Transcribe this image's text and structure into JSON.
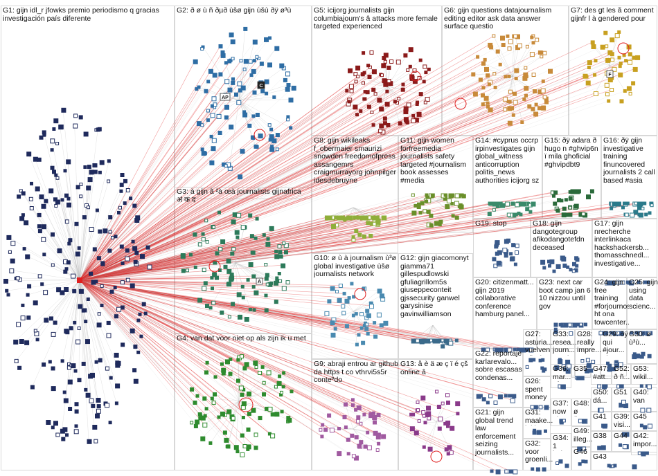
{
  "groups": [
    {
      "id": "G1",
      "label": "G1: gijn idl_r jfowks premio periodismo q gracias investigación país diferente"
    },
    {
      "id": "G2",
      "label": "G2: ð ø ù ñ ðµð ùšø gijn ùšù ðÿ ø³ù"
    },
    {
      "id": "G5",
      "label": "G5: icijorg journalists gijn columbiajourn's â attacks more female targeted experienced"
    },
    {
      "id": "G6",
      "label": "G6: gijn questions datajournalism editing editor ask data answer surface questio"
    },
    {
      "id": "G7",
      "label": "G7: des gt les ã comment gijnfr l à gendered pour"
    },
    {
      "id": "G8",
      "label": "G8: gijn wikileaks f_obermaier smaurizi snowden freedomofpress assangemrs craigmurrayorg johnpilger idesdebruyne"
    },
    {
      "id": "G11",
      "label": "G11: gijn women forfreemedia journalists safety targeted #journalism book assesses #media"
    },
    {
      "id": "G14",
      "label": "G14: #cyprus occrp irpinvestigates gijn global_witness anticorruption politis_news authorities icijorg sz"
    },
    {
      "id": "G15",
      "label": "G15: ðÿ adara ð hugo n #ghvip6n ï mila ghoficial #ghvipdbt9"
    },
    {
      "id": "G16",
      "label": "G16: ðÿ gijn investigative training finuncovered journalists 2 call based #asia"
    },
    {
      "id": "G3",
      "label": "G3: à gijn ã ²à œà journalists gijnafrica ॳ क द"
    },
    {
      "id": "G19",
      "label": "G19: stop"
    },
    {
      "id": "G18",
      "label": "G18: gijn dangotegroup afikodangotefdn deceased"
    },
    {
      "id": "G17",
      "label": "G17: gijn nrecherche interlinkaca hackshackersb... thomasschnedl... investigative..."
    },
    {
      "id": "G10",
      "label": "G10: ø ù à journalism ù³ø global investigative ùšø journalists network"
    },
    {
      "id": "G12",
      "label": "G12: gijn giacomonyt giamma71 gillespudlowski gfuliagrillom5s giuseppeconteit gjssecurity ganwel garysinise gavinwilliamson"
    },
    {
      "id": "G20",
      "label": "G20: citizenmatt... gijn 2019 collaborative conference hamburg panel..."
    },
    {
      "id": "G23",
      "label": "G23: next car boot camp jan 6 10 nizzou until gov"
    },
    {
      "id": "G24",
      "label": "G24: gijn free training #forjournos ht ona towcenter..."
    },
    {
      "id": "G25",
      "label": "G25: gijn using data scienc..."
    },
    {
      "id": "G4",
      "label": "G4: van dat voor niet op als zijn ik u met"
    },
    {
      "id": "G27",
      "label": "G27: asturia... vuelven #ficxin..."
    },
    {
      "id": "G33",
      "label": "G33: resea... journ... need..."
    },
    {
      "id": "G28",
      "label": "G28: really impre... resea..."
    },
    {
      "id": "G29",
      "label": "G29: ðÿ qui #jour... vient..."
    },
    {
      "id": "G30",
      "label": "G30: ø ù³ù..."
    },
    {
      "id": "G22",
      "label": "G22: reportaje karlarevalo... sobre escasas condenas..."
    },
    {
      "id": "G26",
      "label": "G26: spent money report..."
    },
    {
      "id": "G36",
      "label": "G36: mar... efot..."
    },
    {
      "id": "G35",
      "label": "G35"
    },
    {
      "id": "G47",
      "label": "G47: #att..."
    },
    {
      "id": "G52",
      "label": "G52: ð ñ..."
    },
    {
      "id": "G53",
      "label": "G53: wikil..."
    },
    {
      "id": "G9",
      "label": "G9: abraji entrou ar github da https t co vthrvi5s5r conteºdo"
    },
    {
      "id": "G13",
      "label": "G13: å è ä æ ç ï é çš online â"
    },
    {
      "id": "G37",
      "label": "G37: now #ke..."
    },
    {
      "id": "G48",
      "label": "G48: ø ðy..."
    },
    {
      "id": "G50",
      "label": "G50: dá..."
    },
    {
      "id": "G51",
      "label": "G51"
    },
    {
      "id": "G40",
      "label": "G40: van"
    },
    {
      "id": "G31",
      "label": "G31: maake... jnkka..."
    },
    {
      "id": "G49",
      "label": "G49: illeg..."
    },
    {
      "id": "G41",
      "label": "G41"
    },
    {
      "id": "G39",
      "label": "G39: visi..."
    },
    {
      "id": "G45",
      "label": "G45"
    },
    {
      "id": "G21",
      "label": "G21: gijn global trend law enforcement seizing journalists..."
    },
    {
      "id": "G34",
      "label": "G34: 1 lud..."
    },
    {
      "id": "G32",
      "label": "G32: voor groenli..."
    },
    {
      "id": "G46",
      "label": "G46"
    },
    {
      "id": "G38",
      "label": "G38"
    },
    {
      "id": "G44",
      "label": "G44"
    },
    {
      "id": "G42",
      "label": "G42: impor..."
    },
    {
      "id": "G43",
      "label": "G43"
    }
  ],
  "node_badges": [
    {
      "group": "G2",
      "text": "AP"
    },
    {
      "group": "G2",
      "text": "C"
    },
    {
      "group": "G7",
      "text": "F"
    },
    {
      "group": "G10",
      "text": "A"
    }
  ],
  "colors": {
    "box_border": "#d8d8d8",
    "edge_gray": "#bdbdbd",
    "edge_red": "#e02020",
    "G1": "#1f2a5c",
    "G2": "#2e6da4",
    "G3": "#2d7a5a",
    "G4": "#2e8b2e",
    "G5": "#8b1a1a",
    "G6": "#c88a3a",
    "G7": "#c8a020",
    "G8": "#8fae3a",
    "G9": "#a05aa0",
    "G10": "#4a8ab0",
    "G11": "#6a8f2a",
    "G12": "#3a6a8a",
    "G13": "#8a3a8a",
    "G14": "#3a8a6a",
    "G15": "#2a6a3a",
    "G16": "#2a7a8a",
    "misc": "#3a5a8a"
  }
}
